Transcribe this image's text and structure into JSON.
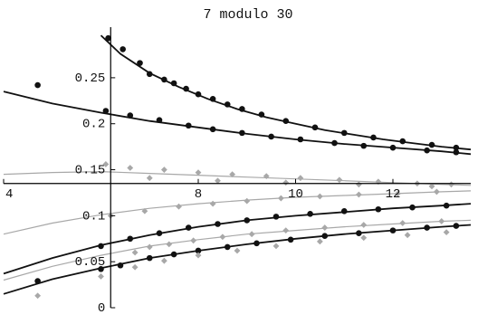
{
  "chart_data": {
    "type": "scatter",
    "title": "7 modulo 30",
    "xlim": [
      4,
      13.6
    ],
    "ylim": [
      0,
      0.305
    ],
    "axes_origin": {
      "x": 6.2,
      "y": 0.135
    },
    "x_ticks": [
      {
        "value": 4,
        "label": "4"
      },
      {
        "value": 8,
        "label": "8"
      },
      {
        "value": 10,
        "label": "10"
      },
      {
        "value": 12,
        "label": "12"
      }
    ],
    "y_ticks": [
      {
        "value": 0,
        "label": "0"
      },
      {
        "value": 0.05,
        "label": "0.05"
      },
      {
        "value": 0.1,
        "label": "0.1"
      },
      {
        "value": 0.15,
        "label": "0.15"
      },
      {
        "value": 0.2,
        "label": "0.2"
      },
      {
        "value": 0.25,
        "label": "0.25"
      }
    ],
    "colors": {
      "dark": "#111111",
      "gray": "#a8a8a8"
    },
    "curves": [
      {
        "style": "dark",
        "x": [
          6.0,
          6.4,
          7.0,
          7.6,
          8.2,
          8.8,
          9.4,
          10.0,
          10.6,
          11.2,
          11.8,
          12.4,
          13.0,
          13.6
        ],
        "y": [
          0.296,
          0.276,
          0.255,
          0.24,
          0.227,
          0.216,
          0.207,
          0.2,
          0.193,
          0.188,
          0.183,
          0.179,
          0.175,
          0.172
        ]
      },
      {
        "style": "dark",
        "x": [
          4.0,
          5.0,
          6.0,
          7.0,
          8.0,
          9.0,
          10.0,
          11.0,
          12.0,
          13.0,
          13.6
        ],
        "y": [
          0.235,
          0.222,
          0.212,
          0.203,
          0.196,
          0.189,
          0.183,
          0.178,
          0.174,
          0.17,
          0.167
        ]
      },
      {
        "style": "gray",
        "x": [
          4.0,
          5.0,
          6.0,
          7.0,
          8.0,
          9.0,
          10.0,
          11.0,
          12.0,
          13.0,
          13.6
        ],
        "y": [
          0.145,
          0.147,
          0.148,
          0.146,
          0.144,
          0.142,
          0.14,
          0.138,
          0.136,
          0.134,
          0.133
        ]
      },
      {
        "style": "gray",
        "x": [
          4.0,
          5.0,
          6.0,
          7.0,
          8.0,
          9.0,
          10.0,
          11.0,
          12.0,
          13.0,
          13.6
        ],
        "y": [
          0.08,
          0.092,
          0.101,
          0.108,
          0.113,
          0.117,
          0.12,
          0.122,
          0.124,
          0.126,
          0.127
        ]
      },
      {
        "style": "gray",
        "x": [
          4.0,
          5.0,
          6.0,
          7.0,
          8.0,
          9.0,
          10.0,
          11.0,
          12.0,
          13.0,
          13.6
        ],
        "y": [
          0.03,
          0.045,
          0.057,
          0.067,
          0.074,
          0.08,
          0.084,
          0.088,
          0.091,
          0.094,
          0.095
        ]
      },
      {
        "style": "dark",
        "x": [
          4.0,
          5.0,
          6.0,
          7.0,
          8.0,
          9.0,
          10.0,
          11.0,
          12.0,
          13.0,
          13.6
        ],
        "y": [
          0.037,
          0.054,
          0.068,
          0.079,
          0.088,
          0.095,
          0.1,
          0.104,
          0.108,
          0.111,
          0.113
        ]
      },
      {
        "style": "dark",
        "x": [
          4.0,
          5.0,
          6.0,
          7.0,
          8.0,
          9.0,
          10.0,
          11.0,
          12.0,
          13.0,
          13.6
        ],
        "y": [
          0.015,
          0.031,
          0.043,
          0.054,
          0.062,
          0.069,
          0.075,
          0.08,
          0.084,
          0.088,
          0.09
        ]
      }
    ],
    "points": [
      {
        "style": "dark",
        "x": 4.7,
        "y": 0.242
      },
      {
        "style": "dark",
        "x": 6.15,
        "y": 0.293
      },
      {
        "style": "dark",
        "x": 6.45,
        "y": 0.281
      },
      {
        "style": "dark",
        "x": 6.8,
        "y": 0.266
      },
      {
        "style": "dark",
        "x": 7.0,
        "y": 0.254
      },
      {
        "style": "dark",
        "x": 7.3,
        "y": 0.248
      },
      {
        "style": "dark",
        "x": 7.5,
        "y": 0.244
      },
      {
        "style": "dark",
        "x": 7.75,
        "y": 0.238
      },
      {
        "style": "dark",
        "x": 8.0,
        "y": 0.232
      },
      {
        "style": "dark",
        "x": 8.3,
        "y": 0.227
      },
      {
        "style": "dark",
        "x": 8.6,
        "y": 0.221
      },
      {
        "style": "dark",
        "x": 8.9,
        "y": 0.216
      },
      {
        "style": "dark",
        "x": 9.3,
        "y": 0.21
      },
      {
        "style": "dark",
        "x": 9.8,
        "y": 0.203
      },
      {
        "style": "dark",
        "x": 10.4,
        "y": 0.196
      },
      {
        "style": "dark",
        "x": 11.0,
        "y": 0.19
      },
      {
        "style": "dark",
        "x": 11.6,
        "y": 0.185
      },
      {
        "style": "dark",
        "x": 12.2,
        "y": 0.181
      },
      {
        "style": "dark",
        "x": 12.8,
        "y": 0.177
      },
      {
        "style": "dark",
        "x": 13.3,
        "y": 0.174
      },
      {
        "style": "dark",
        "x": 6.1,
        "y": 0.214
      },
      {
        "style": "dark",
        "x": 6.6,
        "y": 0.209
      },
      {
        "style": "dark",
        "x": 7.2,
        "y": 0.204
      },
      {
        "style": "dark",
        "x": 7.8,
        "y": 0.198
      },
      {
        "style": "dark",
        "x": 8.3,
        "y": 0.194
      },
      {
        "style": "dark",
        "x": 8.9,
        "y": 0.19
      },
      {
        "style": "dark",
        "x": 9.5,
        "y": 0.186
      },
      {
        "style": "dark",
        "x": 10.1,
        "y": 0.183
      },
      {
        "style": "dark",
        "x": 10.8,
        "y": 0.179
      },
      {
        "style": "dark",
        "x": 11.4,
        "y": 0.176
      },
      {
        "style": "dark",
        "x": 12.0,
        "y": 0.174
      },
      {
        "style": "dark",
        "x": 12.7,
        "y": 0.171
      },
      {
        "style": "dark",
        "x": 13.3,
        "y": 0.169
      },
      {
        "style": "gray",
        "x": 6.1,
        "y": 0.156
      },
      {
        "style": "gray",
        "x": 6.6,
        "y": 0.152
      },
      {
        "style": "gray",
        "x": 7.3,
        "y": 0.15
      },
      {
        "style": "gray",
        "x": 8.0,
        "y": 0.147
      },
      {
        "style": "gray",
        "x": 8.7,
        "y": 0.145
      },
      {
        "style": "gray",
        "x": 9.4,
        "y": 0.143
      },
      {
        "style": "gray",
        "x": 10.1,
        "y": 0.141
      },
      {
        "style": "gray",
        "x": 10.9,
        "y": 0.139
      },
      {
        "style": "gray",
        "x": 11.7,
        "y": 0.137
      },
      {
        "style": "gray",
        "x": 12.5,
        "y": 0.135
      },
      {
        "style": "gray",
        "x": 13.2,
        "y": 0.134
      },
      {
        "style": "gray",
        "x": 7.0,
        "y": 0.141
      },
      {
        "style": "gray",
        "x": 8.4,
        "y": 0.138
      },
      {
        "style": "gray",
        "x": 9.8,
        "y": 0.136
      },
      {
        "style": "gray",
        "x": 11.3,
        "y": 0.134
      },
      {
        "style": "gray",
        "x": 12.8,
        "y": 0.132
      },
      {
        "style": "gray",
        "x": 6.2,
        "y": 0.1
      },
      {
        "style": "gray",
        "x": 6.9,
        "y": 0.105
      },
      {
        "style": "gray",
        "x": 7.6,
        "y": 0.11
      },
      {
        "style": "gray",
        "x": 8.3,
        "y": 0.113
      },
      {
        "style": "gray",
        "x": 9.0,
        "y": 0.116
      },
      {
        "style": "gray",
        "x": 9.7,
        "y": 0.119
      },
      {
        "style": "gray",
        "x": 10.5,
        "y": 0.121
      },
      {
        "style": "gray",
        "x": 11.3,
        "y": 0.123
      },
      {
        "style": "gray",
        "x": 12.1,
        "y": 0.124
      },
      {
        "style": "gray",
        "x": 12.9,
        "y": 0.126
      },
      {
        "style": "dark",
        "x": 6.0,
        "y": 0.067
      },
      {
        "style": "dark",
        "x": 6.6,
        "y": 0.075
      },
      {
        "style": "dark",
        "x": 7.2,
        "y": 0.081
      },
      {
        "style": "dark",
        "x": 7.8,
        "y": 0.087
      },
      {
        "style": "dark",
        "x": 8.4,
        "y": 0.091
      },
      {
        "style": "dark",
        "x": 9.0,
        "y": 0.095
      },
      {
        "style": "dark",
        "x": 9.6,
        "y": 0.099
      },
      {
        "style": "dark",
        "x": 10.3,
        "y": 0.102
      },
      {
        "style": "dark",
        "x": 11.0,
        "y": 0.105
      },
      {
        "style": "dark",
        "x": 11.7,
        "y": 0.107
      },
      {
        "style": "dark",
        "x": 12.4,
        "y": 0.109
      },
      {
        "style": "dark",
        "x": 13.1,
        "y": 0.111
      },
      {
        "style": "gray",
        "x": 6.7,
        "y": 0.06
      },
      {
        "style": "gray",
        "x": 7.0,
        "y": 0.066
      },
      {
        "style": "gray",
        "x": 7.4,
        "y": 0.069
      },
      {
        "style": "gray",
        "x": 7.9,
        "y": 0.073
      },
      {
        "style": "gray",
        "x": 8.5,
        "y": 0.077
      },
      {
        "style": "gray",
        "x": 9.1,
        "y": 0.08
      },
      {
        "style": "gray",
        "x": 9.8,
        "y": 0.084
      },
      {
        "style": "gray",
        "x": 10.6,
        "y": 0.087
      },
      {
        "style": "gray",
        "x": 11.4,
        "y": 0.09
      },
      {
        "style": "gray",
        "x": 12.2,
        "y": 0.092
      },
      {
        "style": "gray",
        "x": 13.0,
        "y": 0.094
      },
      {
        "style": "dark",
        "x": 4.7,
        "y": 0.029
      },
      {
        "style": "dark",
        "x": 6.0,
        "y": 0.042
      },
      {
        "style": "dark",
        "x": 6.4,
        "y": 0.046
      },
      {
        "style": "dark",
        "x": 7.0,
        "y": 0.054
      },
      {
        "style": "dark",
        "x": 7.5,
        "y": 0.058
      },
      {
        "style": "dark",
        "x": 8.0,
        "y": 0.062
      },
      {
        "style": "dark",
        "x": 8.6,
        "y": 0.066
      },
      {
        "style": "dark",
        "x": 9.2,
        "y": 0.07
      },
      {
        "style": "dark",
        "x": 9.9,
        "y": 0.074
      },
      {
        "style": "dark",
        "x": 10.6,
        "y": 0.078
      },
      {
        "style": "dark",
        "x": 11.3,
        "y": 0.081
      },
      {
        "style": "dark",
        "x": 12.0,
        "y": 0.084
      },
      {
        "style": "dark",
        "x": 12.7,
        "y": 0.087
      },
      {
        "style": "dark",
        "x": 13.3,
        "y": 0.089
      },
      {
        "style": "gray",
        "x": 4.7,
        "y": 0.013
      },
      {
        "style": "gray",
        "x": 6.0,
        "y": 0.034
      },
      {
        "style": "gray",
        "x": 6.7,
        "y": 0.044
      },
      {
        "style": "gray",
        "x": 7.3,
        "y": 0.051
      },
      {
        "style": "gray",
        "x": 8.0,
        "y": 0.057
      },
      {
        "style": "gray",
        "x": 8.8,
        "y": 0.062
      },
      {
        "style": "gray",
        "x": 9.6,
        "y": 0.067
      },
      {
        "style": "gray",
        "x": 10.5,
        "y": 0.072
      },
      {
        "style": "gray",
        "x": 11.4,
        "y": 0.076
      },
      {
        "style": "gray",
        "x": 12.3,
        "y": 0.079
      },
      {
        "style": "gray",
        "x": 13.1,
        "y": 0.082
      }
    ]
  }
}
